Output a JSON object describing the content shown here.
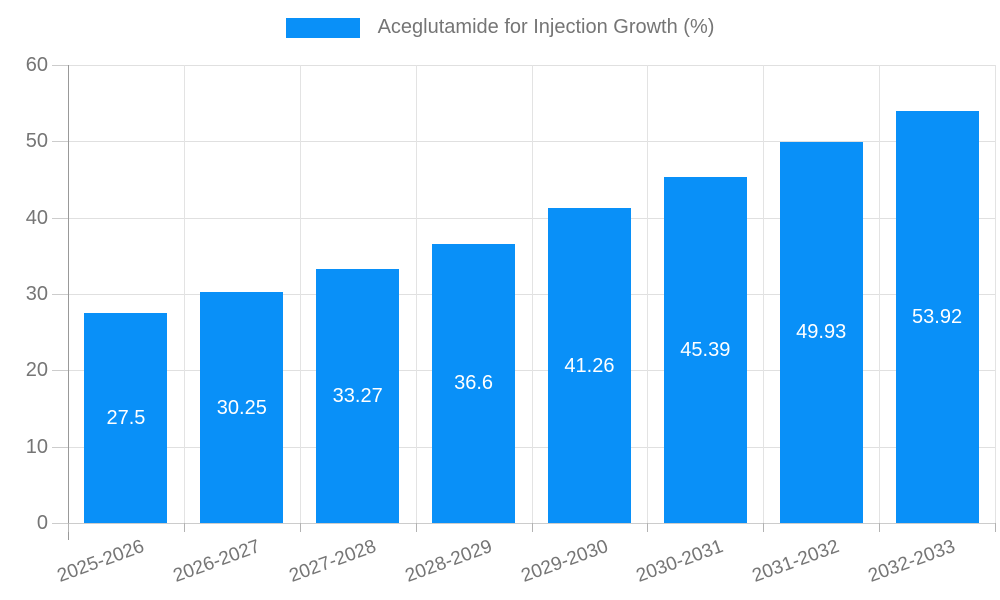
{
  "legend": {
    "label": "Aceglutamide for Injection Growth (%)"
  },
  "chart_data": {
    "type": "bar",
    "title": "Aceglutamide for Injection Growth (%)",
    "series_name": "Aceglutamide for Injection Growth (%)",
    "categories": [
      "2025-2026",
      "2026-2027",
      "2027-2028",
      "2028-2029",
      "2029-2030",
      "2030-2031",
      "2031-2032",
      "2032-2033"
    ],
    "values": [
      27.5,
      30.25,
      33.27,
      36.6,
      41.26,
      45.39,
      49.93,
      53.92
    ],
    "value_labels": [
      "27.5",
      "30.25",
      "33.27",
      "36.6",
      "41.26",
      "45.39",
      "49.93",
      "53.92"
    ],
    "xlabel": "",
    "ylabel": "",
    "ylim": [
      0,
      60
    ],
    "yticks": [
      0,
      10,
      20,
      30,
      40,
      50,
      60
    ],
    "grid": true,
    "legend_position": "top-center",
    "value_label_position": "inside-center",
    "x_label_rotation_deg": -20,
    "colors": {
      "bar": "#0990f8",
      "value_label": "#ffffff",
      "axis_text": "#757575",
      "legend_text": "#757575",
      "gridline": "#e0e0e0",
      "axis_line": "#999999",
      "background": "#ffffff"
    }
  }
}
